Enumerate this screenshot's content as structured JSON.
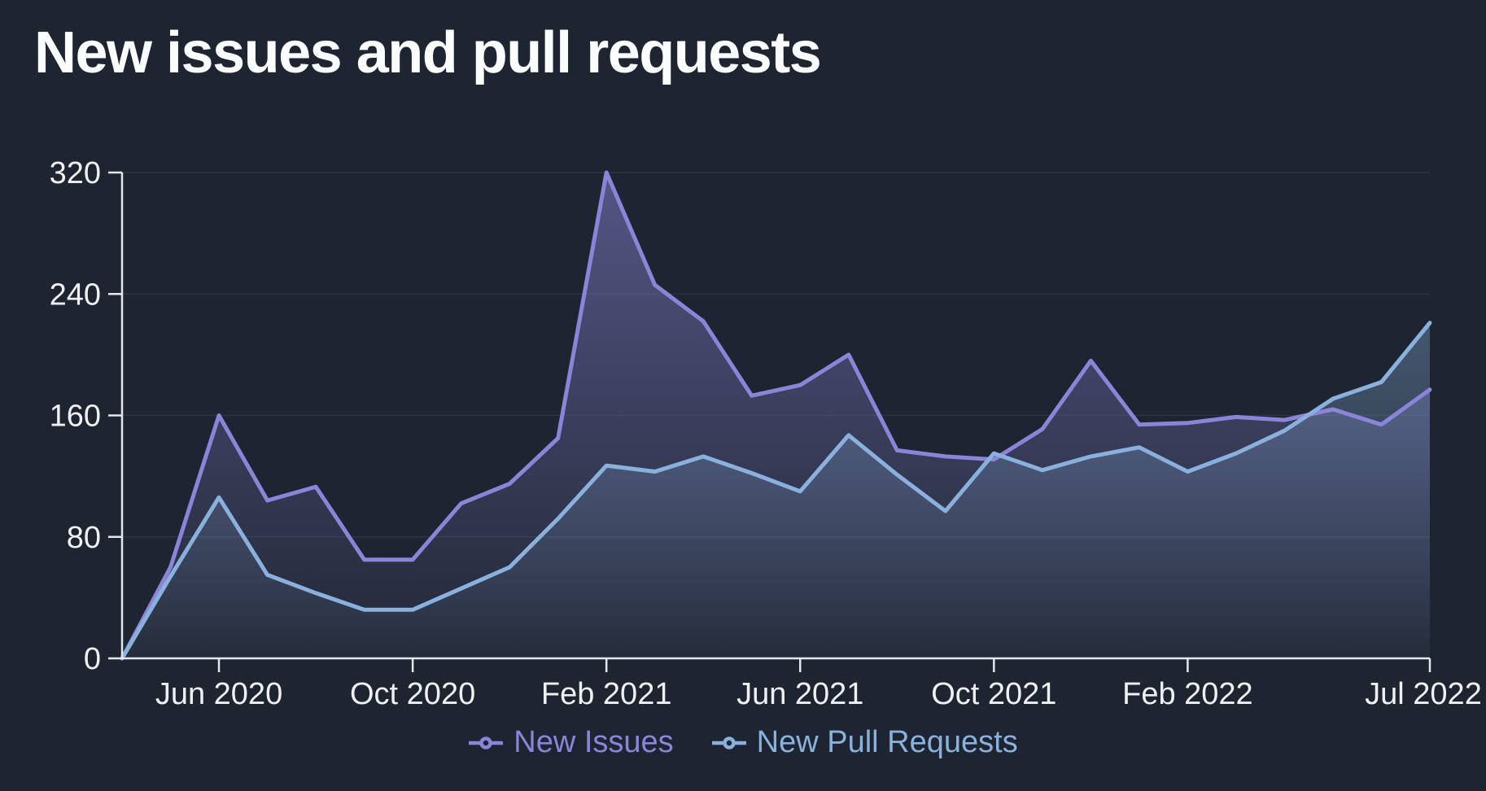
{
  "title": "New issues and pull requests",
  "legend": {
    "items": [
      {
        "label": "New Issues"
      },
      {
        "label": "New Pull Requests"
      }
    ]
  },
  "colors": {
    "background": "#1e2530",
    "axis": "#e4e7eb",
    "gridline": "#39425480",
    "title_text": "#fbfcfe",
    "tick_text": "#eef0f4",
    "new_issues": "#8b85d9",
    "new_pull_requests": "#8ab1de"
  },
  "chart_data": {
    "type": "area",
    "title": "New issues and pull requests",
    "xlabel": "",
    "ylabel": "",
    "ylim": [
      0,
      320
    ],
    "grid": "horizontal",
    "legend_position": "bottom",
    "x": [
      "Apr 2020",
      "May 2020",
      "Jun 2020",
      "Jul 2020",
      "Aug 2020",
      "Sep 2020",
      "Oct 2020",
      "Nov 2020",
      "Dec 2020",
      "Jan 2021",
      "Feb 2021",
      "Mar 2021",
      "Apr 2021",
      "May 2021",
      "Jun 2021",
      "Jul 2021",
      "Aug 2021",
      "Sep 2021",
      "Oct 2021",
      "Nov 2021",
      "Dec 2021",
      "Jan 2022",
      "Feb 2022",
      "Mar 2022",
      "Apr 2022",
      "May 2022",
      "Jun 2022",
      "Jul 2022"
    ],
    "series": [
      {
        "name": "New Issues",
        "color": "#8b85d9",
        "values": [
          0,
          60,
          160,
          104,
          113,
          65,
          65,
          102,
          115,
          145,
          320,
          246,
          222,
          173,
          180,
          200,
          137,
          133,
          131,
          151,
          196,
          154,
          155,
          159,
          157,
          164,
          154,
          177
        ]
      },
      {
        "name": "New Pull Requests",
        "color": "#8ab1de",
        "values": [
          0,
          54,
          106,
          55,
          43,
          32,
          32,
          46,
          60,
          92,
          127,
          123,
          133,
          122,
          110,
          147,
          121,
          97,
          135,
          124,
          133,
          139,
          123,
          135,
          150,
          171,
          182,
          221
        ]
      }
    ],
    "y_ticks": [
      0,
      80,
      160,
      240,
      320
    ],
    "x_tick_indices": [
      2,
      6,
      10,
      14,
      18,
      22,
      27
    ],
    "x_tick_labels": [
      "Jun 2020",
      "Oct 2020",
      "Feb 2021",
      "Jun 2021",
      "Oct 2021",
      "Feb 2022",
      "Jul 2022"
    ]
  }
}
